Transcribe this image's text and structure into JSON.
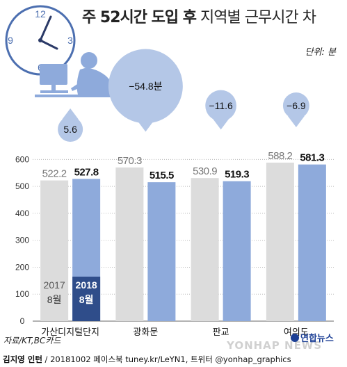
{
  "title": {
    "bold": "주 52시간 도입 후",
    "light": "지역별 근무시간 차"
  },
  "unit_label": "단위: 분",
  "source_label": "자료/KT,BC카드",
  "footer": {
    "author": "김지영 인턴",
    "rest": " / 20181002  페이스북 tuney.kr/LeYN1, 트위터 @yonhap_graphics"
  },
  "logo": {
    "text": "연합뉴스"
  },
  "watermark": "YONHAP NEWS",
  "colors": {
    "bar_2017": "#dcdcdc",
    "bar_2018": "#8eaadb",
    "bubble": "#b4c7e7",
    "dark_bar": "#2f4d8a",
    "grid": "#bbbbbb"
  },
  "chart_data": {
    "type": "bar",
    "categories": [
      "가산디지털단지",
      "광화문",
      "판교",
      "여의도"
    ],
    "series": [
      {
        "name": "2017 8월",
        "values": [
          522.2,
          570.3,
          530.9,
          588.2
        ]
      },
      {
        "name": "2018 8월",
        "values": [
          527.8,
          515.5,
          519.3,
          581.3
        ]
      }
    ],
    "series_labels": [
      {
        "year": "2017",
        "month": "8월"
      },
      {
        "year": "2018",
        "month": "8월"
      }
    ],
    "value_labels": [
      [
        "522.2",
        "527.8"
      ],
      [
        "570.3",
        "515.5"
      ],
      [
        "530.9",
        "519.3"
      ],
      [
        "588.2",
        "581.3"
      ]
    ],
    "differences": [
      5.6,
      -54.8,
      -11.6,
      -6.9
    ],
    "difference_labels": [
      "5.6",
      "−54.8분",
      "−11.6",
      "−6.9"
    ],
    "yticks": [
      0,
      100,
      200,
      300,
      400,
      500,
      600
    ],
    "ylim": [
      0,
      650
    ],
    "grid": true
  }
}
